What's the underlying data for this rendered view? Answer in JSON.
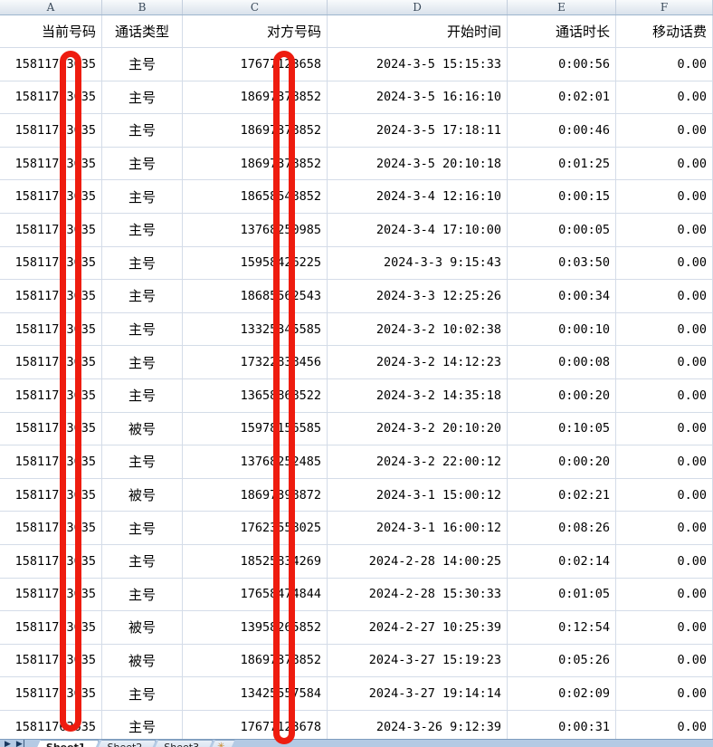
{
  "columns": [
    {
      "letter": "A"
    },
    {
      "letter": "B"
    },
    {
      "letter": "C"
    },
    {
      "letter": "D"
    },
    {
      "letter": "E"
    },
    {
      "letter": "F"
    }
  ],
  "header": {
    "cells": [
      "当前号码",
      "通话类型",
      "对方号码",
      "开始时间",
      "通话时长",
      "移动话费"
    ]
  },
  "table": {
    "rows": [
      {
        "a": "15811763635",
        "b": "主号",
        "c": "17677123658",
        "d": "2024-3-5 15:15:33",
        "e": "0:00:56",
        "f": "0.00"
      },
      {
        "a": "15811763635",
        "b": "主号",
        "c": "18697378852",
        "d": "2024-3-5 16:16:10",
        "e": "0:02:01",
        "f": "0.00"
      },
      {
        "a": "15811763635",
        "b": "主号",
        "c": "18697378852",
        "d": "2024-3-5 17:18:11",
        "e": "0:00:46",
        "f": "0.00"
      },
      {
        "a": "15811763635",
        "b": "主号",
        "c": "18697378852",
        "d": "2024-3-5 20:10:18",
        "e": "0:01:25",
        "f": "0.00"
      },
      {
        "a": "15811763635",
        "b": "主号",
        "c": "18658548852",
        "d": "2024-3-4 12:16:10",
        "e": "0:00:15",
        "f": "0.00"
      },
      {
        "a": "15811763635",
        "b": "主号",
        "c": "13768250985",
        "d": "2024-3-4 17:10:00",
        "e": "0:00:05",
        "f": "0.00"
      },
      {
        "a": "15811763635",
        "b": "主号",
        "c": "15958426225",
        "d": "2024-3-3 9:15:43",
        "e": "0:03:50",
        "f": "0.00"
      },
      {
        "a": "15811763635",
        "b": "主号",
        "c": "18685562543",
        "d": "2024-3-3 12:25:26",
        "e": "0:00:34",
        "f": "0.00"
      },
      {
        "a": "15811763635",
        "b": "主号",
        "c": "13325345585",
        "d": "2024-3-2 10:02:38",
        "e": "0:00:10",
        "f": "0.00"
      },
      {
        "a": "15811763635",
        "b": "主号",
        "c": "17322838456",
        "d": "2024-3-2 14:12:23",
        "e": "0:00:08",
        "f": "0.00"
      },
      {
        "a": "15811763635",
        "b": "主号",
        "c": "13658868522",
        "d": "2024-3-2 14:35:18",
        "e": "0:00:20",
        "f": "0.00"
      },
      {
        "a": "15811763635",
        "b": "被号",
        "c": "15978156585",
        "d": "2024-3-2 20:10:20",
        "e": "0:10:05",
        "f": "0.00"
      },
      {
        "a": "15811763635",
        "b": "主号",
        "c": "13768252485",
        "d": "2024-3-2 22:00:12",
        "e": "0:00:20",
        "f": "0.00"
      },
      {
        "a": "15811763635",
        "b": "被号",
        "c": "18697398872",
        "d": "2024-3-1 15:00:12",
        "e": "0:02:21",
        "f": "0.00"
      },
      {
        "a": "15811763635",
        "b": "主号",
        "c": "17623558025",
        "d": "2024-3-1 16:00:12",
        "e": "0:08:26",
        "f": "0.00"
      },
      {
        "a": "15811763635",
        "b": "主号",
        "c": "18525834269",
        "d": "2024-2-28 14:00:25",
        "e": "0:02:14",
        "f": "0.00"
      },
      {
        "a": "15811763635",
        "b": "主号",
        "c": "17658474844",
        "d": "2024-2-28 15:30:33",
        "e": "0:01:05",
        "f": "0.00"
      },
      {
        "a": "15811763635",
        "b": "被号",
        "c": "13958265852",
        "d": "2024-2-27 10:25:39",
        "e": "0:12:54",
        "f": "0.00"
      },
      {
        "a": "15811763635",
        "b": "被号",
        "c": "18697378852",
        "d": "2024-3-27 15:19:23",
        "e": "0:05:26",
        "f": "0.00"
      },
      {
        "a": "15811763635",
        "b": "主号",
        "c": "13425557584",
        "d": "2024-3-27 19:14:14",
        "e": "0:02:09",
        "f": "0.00"
      },
      {
        "a": "15811763635",
        "b": "主号",
        "c": "17677123678",
        "d": "2024-3-26 9:12:39",
        "e": "0:00:31",
        "f": "0.00"
      }
    ]
  },
  "tabs": {
    "nav": [
      "▶",
      "▶|"
    ],
    "items": [
      {
        "label": "Sheet1",
        "active": true
      },
      {
        "label": "Sheet2",
        "active": false
      },
      {
        "label": "Sheet3",
        "active": false
      }
    ],
    "insert_icon": "✳"
  },
  "colors": {
    "redaction_red": "#ee1c0f",
    "grid_line": "#d4dce8",
    "tabbar_background": "#b4cae4",
    "nav_arrows": "#17375e"
  }
}
